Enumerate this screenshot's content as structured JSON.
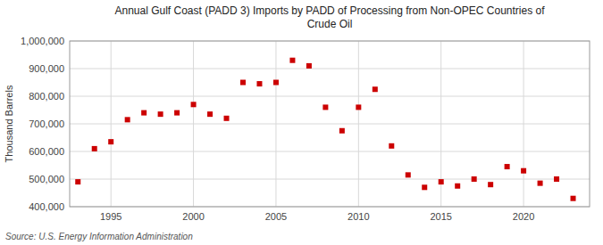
{
  "chart_data": {
    "type": "scatter",
    "title": "Annual Gulf Coast (PADD 3) Imports by PADD of Processing from Non-OPEC Countries of\nCrude Oil",
    "y_label": "Thousand Barrels",
    "source": "Source: U.S. Energy Information Administration",
    "x": [
      1993,
      1994,
      1995,
      1996,
      1997,
      1998,
      1999,
      2000,
      2001,
      2002,
      2003,
      2004,
      2005,
      2006,
      2007,
      2008,
      2009,
      2010,
      2011,
      2012,
      2013,
      2014,
      2015,
      2016,
      2017,
      2018,
      2019,
      2020,
      2021,
      2022,
      2023
    ],
    "values": [
      490000,
      610000,
      635000,
      715000,
      740000,
      735000,
      740000,
      770000,
      735000,
      720000,
      850000,
      845000,
      850000,
      930000,
      910000,
      760000,
      675000,
      760000,
      825000,
      620000,
      515000,
      470000,
      490000,
      475000,
      500000,
      480000,
      545000,
      530000,
      485000,
      500000,
      430000
    ],
    "color": "#cc0000",
    "marker": "square",
    "xlim": [
      1992.5,
      2024
    ],
    "xticks": [
      1995,
      2000,
      2005,
      2010,
      2015,
      2020
    ],
    "ylim": [
      400000,
      1000000
    ],
    "yticks": [
      {
        "value": 400000,
        "label": "400,000"
      },
      {
        "value": 500000,
        "label": "500,000"
      },
      {
        "value": 600000,
        "label": "600,000"
      },
      {
        "value": 700000,
        "label": "700,000"
      },
      {
        "value": 800000,
        "label": "800,000"
      },
      {
        "value": 900000,
        "label": "900,000"
      },
      {
        "value": 1000000,
        "label": "1,000,000"
      }
    ],
    "grid": true
  }
}
